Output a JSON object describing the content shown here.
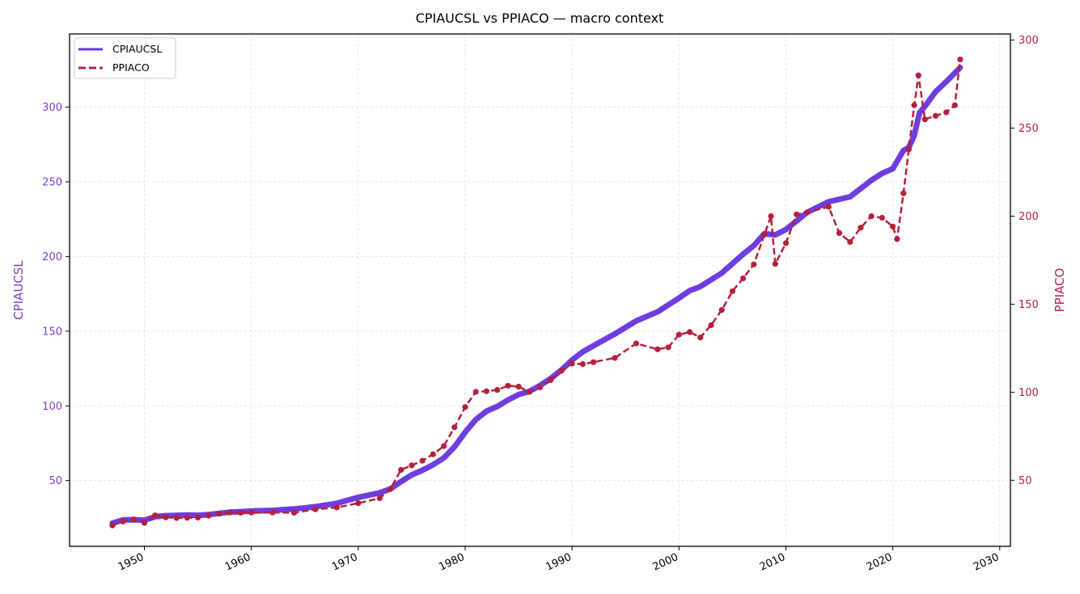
{
  "chart_data": {
    "type": "line",
    "title": "CPIAUCSL vs PPIACO — macro context",
    "xlabel": "",
    "x_ticks": [
      1950,
      1960,
      1970,
      1980,
      1990,
      2000,
      2010,
      2020,
      2030
    ],
    "xlim": [
      1943,
      2031
    ],
    "y_left": {
      "label": "CPIAUCSL",
      "ticks": [
        50,
        100,
        150,
        200,
        250,
        300
      ],
      "lim": [
        6,
        349
      ],
      "color": "#7e3fc6"
    },
    "y_right": {
      "label": "PPIACO",
      "ticks": [
        50,
        100,
        150,
        200,
        250,
        300
      ],
      "lim": [
        12.5,
        303.5
      ],
      "color": "#b5204a"
    },
    "grid": true,
    "legend_position": "top-left",
    "series": [
      {
        "name": "CPIAUCSL",
        "axis": "left",
        "color": "#6633dd",
        "line_style": "solid",
        "x": [
          1947,
          1948,
          1949,
          1950,
          1951,
          1952,
          1953,
          1954,
          1955,
          1956,
          1957,
          1958,
          1959,
          1960,
          1962,
          1964,
          1966,
          1968,
          1970,
          1972,
          1973,
          1974,
          1975,
          1976,
          1977,
          1978,
          1979,
          1980,
          1981,
          1982,
          1983,
          1984,
          1985,
          1986,
          1987,
          1988,
          1989,
          1990,
          1991,
          1992,
          1994,
          1996,
          1998,
          2000,
          2001,
          2002,
          2004,
          2006,
          2007,
          2008,
          2009,
          2010,
          2012,
          2014,
          2016,
          2018,
          2019,
          2020,
          2021,
          2021.5,
          2022,
          2022.5,
          2023,
          2024,
          2025,
          2026.3
        ],
        "values": [
          21.5,
          23.7,
          23.8,
          23.5,
          25.8,
          26.5,
          26.7,
          26.9,
          26.8,
          27.2,
          28.1,
          28.9,
          29.2,
          29.6,
          30.1,
          31.0,
          32.5,
          34.8,
          38.8,
          41.8,
          44.4,
          49.3,
          53.8,
          56.9,
          60.6,
          65.2,
          72.6,
          82.4,
          90.9,
          96.5,
          99.6,
          103.9,
          107.6,
          109.7,
          113.6,
          118.3,
          124.0,
          130.7,
          136.2,
          140.3,
          148.2,
          156.9,
          163.0,
          172.2,
          177.1,
          179.9,
          188.9,
          201.6,
          207.3,
          215.3,
          214.5,
          218.1,
          229.6,
          236.7,
          240.0,
          251.1,
          255.7,
          258.8,
          271.0,
          273.0,
          281.1,
          296.3,
          300.5,
          310.3,
          317.0,
          326.5
        ]
      },
      {
        "name": "PPIACO",
        "axis": "right",
        "color": "#b5203c",
        "line_style": "dashed",
        "markers": true,
        "x": [
          1947,
          1948,
          1949,
          1950,
          1951,
          1952,
          1953,
          1954,
          1955,
          1956,
          1957,
          1958,
          1959,
          1960,
          1962,
          1964,
          1966,
          1968,
          1970,
          1972,
          1973,
          1974,
          1975,
          1976,
          1977,
          1978,
          1979,
          1980,
          1981,
          1982,
          1983,
          1984,
          1985,
          1986,
          1987,
          1988,
          1989,
          1990,
          1991,
          1992,
          1994,
          1996,
          1998,
          1999,
          2000,
          2001,
          2002,
          2003,
          2004,
          2005,
          2006,
          2007,
          2008,
          2008.6,
          2009,
          2010,
          2011,
          2012,
          2014,
          2015,
          2016,
          2017,
          2018,
          2019,
          2020,
          2020.4,
          2021,
          2021.5,
          2022,
          2022.4,
          2023,
          2024,
          2025,
          2025.8,
          2026.3
        ],
        "values": [
          24.4,
          26.6,
          27.8,
          25.8,
          30.1,
          29.0,
          28.6,
          28.7,
          28.8,
          29.9,
          31.0,
          31.7,
          31.6,
          31.7,
          31.7,
          31.6,
          33.5,
          34.6,
          37.0,
          39.8,
          45.0,
          55.9,
          58.5,
          61.1,
          64.8,
          69.4,
          80.1,
          91.6,
          100.2,
          100.6,
          101.3,
          103.7,
          103.2,
          100.2,
          102.8,
          106.9,
          112.2,
          116.3,
          116.0,
          117.1,
          119.5,
          127.7,
          124.4,
          125.5,
          132.7,
          134.2,
          131.1,
          138.1,
          146.7,
          157.4,
          164.7,
          172.6,
          189.6,
          200.0,
          172.9,
          184.7,
          201.0,
          202.2,
          205.3,
          190.4,
          185.3,
          193.5,
          200.0,
          199.1,
          194.1,
          187.0,
          213.0,
          238.0,
          263.0,
          280.0,
          255.0,
          257.0,
          259.0,
          263.0,
          289.0
        ]
      }
    ]
  }
}
